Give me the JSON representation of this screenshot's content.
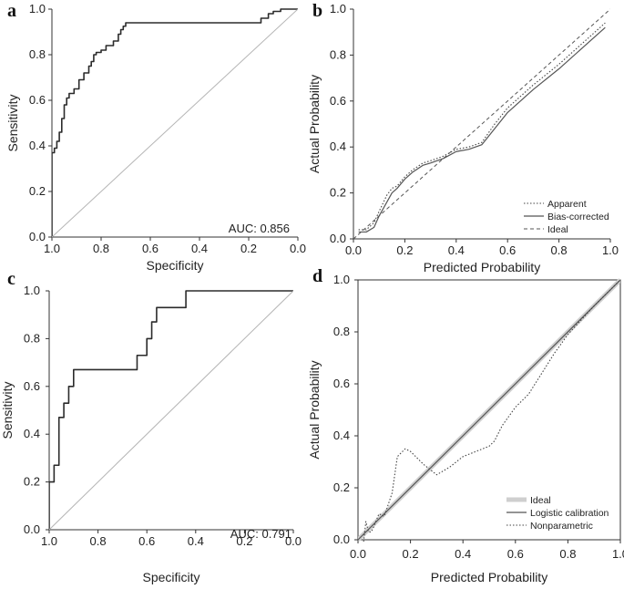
{
  "chart_data": [
    {
      "panel": "a",
      "type": "line",
      "xlabel": "Specificity",
      "ylabel": "Sensitivity",
      "xlim": [
        1.0,
        0.0
      ],
      "ylim": [
        0.0,
        1.0
      ],
      "x_ticks": [
        "1.0",
        "0.8",
        "0.6",
        "0.4",
        "0.2",
        "0.0"
      ],
      "y_ticks": [
        "0.0",
        "0.2",
        "0.4",
        "0.6",
        "0.8",
        "1.0"
      ],
      "annotation": "AUC: 0.856",
      "series": [
        {
          "name": "ROC",
          "style": "step",
          "x": [
            1.0,
            0.99,
            0.98,
            0.97,
            0.96,
            0.95,
            0.94,
            0.93,
            0.91,
            0.89,
            0.87,
            0.85,
            0.84,
            0.83,
            0.82,
            0.8,
            0.78,
            0.75,
            0.73,
            0.72,
            0.71,
            0.7,
            0.15,
            0.12,
            0.1,
            0.07,
            0.05,
            0.0
          ],
          "y": [
            0.0,
            0.37,
            0.39,
            0.42,
            0.46,
            0.52,
            0.58,
            0.61,
            0.63,
            0.65,
            0.69,
            0.72,
            0.75,
            0.77,
            0.8,
            0.81,
            0.82,
            0.84,
            0.86,
            0.89,
            0.91,
            0.925,
            0.94,
            0.96,
            0.98,
            0.99,
            1.0,
            1.0
          ]
        },
        {
          "name": "reference",
          "style": "diagonal",
          "x": [
            1.0,
            0.0
          ],
          "y": [
            0.0,
            1.0
          ]
        }
      ]
    },
    {
      "panel": "b",
      "type": "line",
      "xlabel": "Predicted Probability",
      "ylabel": "Actual Probability",
      "xlim": [
        0.0,
        1.0
      ],
      "ylim": [
        0.0,
        1.0
      ],
      "x_ticks": [
        "0.0",
        "0.2",
        "0.4",
        "0.6",
        "0.8",
        "1.0"
      ],
      "y_ticks": [
        "0.0",
        "0.2",
        "0.4",
        "0.6",
        "0.8",
        "1.0"
      ],
      "legend": [
        "Apparent",
        "Bias-corrected",
        "Ideal"
      ],
      "series": [
        {
          "name": "Apparent",
          "style": "dotted",
          "x": [
            0.02,
            0.05,
            0.08,
            0.1,
            0.13,
            0.15,
            0.17,
            0.2,
            0.23,
            0.27,
            0.3,
            0.35,
            0.4,
            0.45,
            0.5,
            0.55,
            0.6,
            0.7,
            0.8,
            0.9,
            0.98
          ],
          "y": [
            0.04,
            0.04,
            0.07,
            0.12,
            0.19,
            0.22,
            0.23,
            0.27,
            0.3,
            0.33,
            0.34,
            0.36,
            0.39,
            0.4,
            0.42,
            0.5,
            0.57,
            0.67,
            0.76,
            0.86,
            0.94
          ]
        },
        {
          "name": "Bias-corrected",
          "style": "solid",
          "x": [
            0.02,
            0.05,
            0.08,
            0.1,
            0.13,
            0.15,
            0.17,
            0.2,
            0.23,
            0.27,
            0.3,
            0.35,
            0.4,
            0.45,
            0.5,
            0.55,
            0.6,
            0.7,
            0.8,
            0.9,
            0.98
          ],
          "y": [
            0.03,
            0.03,
            0.05,
            0.1,
            0.16,
            0.2,
            0.22,
            0.26,
            0.29,
            0.32,
            0.33,
            0.35,
            0.38,
            0.39,
            0.41,
            0.48,
            0.55,
            0.65,
            0.74,
            0.84,
            0.92
          ]
        },
        {
          "name": "Ideal",
          "style": "dashed",
          "x": [
            0.0,
            1.0
          ],
          "y": [
            0.0,
            1.0
          ]
        }
      ]
    },
    {
      "panel": "c",
      "type": "line",
      "xlabel": "Specificity",
      "ylabel": "Sensitivity",
      "xlim": [
        1.0,
        0.0
      ],
      "ylim": [
        0.0,
        1.0
      ],
      "x_ticks": [
        "1.0",
        "0.8",
        "0.6",
        "0.4",
        "0.2",
        "0.0"
      ],
      "y_ticks": [
        "0.0",
        "0.2",
        "0.4",
        "0.6",
        "0.8",
        "1.0"
      ],
      "annotation": "AUC: 0.791",
      "series": [
        {
          "name": "ROC",
          "style": "step",
          "x": [
            1.0,
            0.98,
            0.96,
            0.94,
            0.92,
            0.9,
            0.64,
            0.6,
            0.58,
            0.56,
            0.44,
            0.32,
            0.0
          ],
          "y": [
            0.0,
            0.2,
            0.27,
            0.47,
            0.53,
            0.6,
            0.67,
            0.73,
            0.8,
            0.87,
            0.93,
            1.0,
            1.0
          ]
        },
        {
          "name": "reference",
          "style": "diagonal",
          "x": [
            1.0,
            0.0
          ],
          "y": [
            0.0,
            1.0
          ]
        }
      ]
    },
    {
      "panel": "d",
      "type": "line",
      "xlabel": "Predicted Probability",
      "ylabel": "Actual Probability",
      "xlim": [
        0.0,
        1.0
      ],
      "ylim": [
        0.0,
        1.0
      ],
      "x_ticks": [
        "0.0",
        "0.2",
        "0.4",
        "0.6",
        "0.8",
        "1.0"
      ],
      "y_ticks": [
        "0.0",
        "0.2",
        "0.4",
        "0.6",
        "0.8",
        "1.0"
      ],
      "legend": [
        "Ideal",
        "Logistic calibration",
        "Nonparametric"
      ],
      "series": [
        {
          "name": "Ideal",
          "style": "thick-light",
          "x": [
            0.0,
            1.0
          ],
          "y": [
            0.0,
            1.0
          ]
        },
        {
          "name": "Logistic calibration",
          "style": "solid",
          "x": [
            0.0,
            1.0
          ],
          "y": [
            0.0,
            1.0
          ]
        },
        {
          "name": "Nonparametric",
          "style": "dotted",
          "x": [
            0.02,
            0.03,
            0.04,
            0.05,
            0.06,
            0.08,
            0.1,
            0.13,
            0.15,
            0.18,
            0.2,
            0.25,
            0.3,
            0.35,
            0.4,
            0.45,
            0.5,
            0.52,
            0.55,
            0.6,
            0.65,
            0.7,
            0.75,
            0.8,
            0.9,
            1.0
          ],
          "y": [
            -0.02,
            0.07,
            0.03,
            0.03,
            0.05,
            0.1,
            0.09,
            0.18,
            0.32,
            0.35,
            0.34,
            0.29,
            0.25,
            0.28,
            0.32,
            0.34,
            0.36,
            0.38,
            0.44,
            0.51,
            0.56,
            0.64,
            0.72,
            0.79,
            0.9,
            1.0
          ]
        }
      ]
    }
  ]
}
